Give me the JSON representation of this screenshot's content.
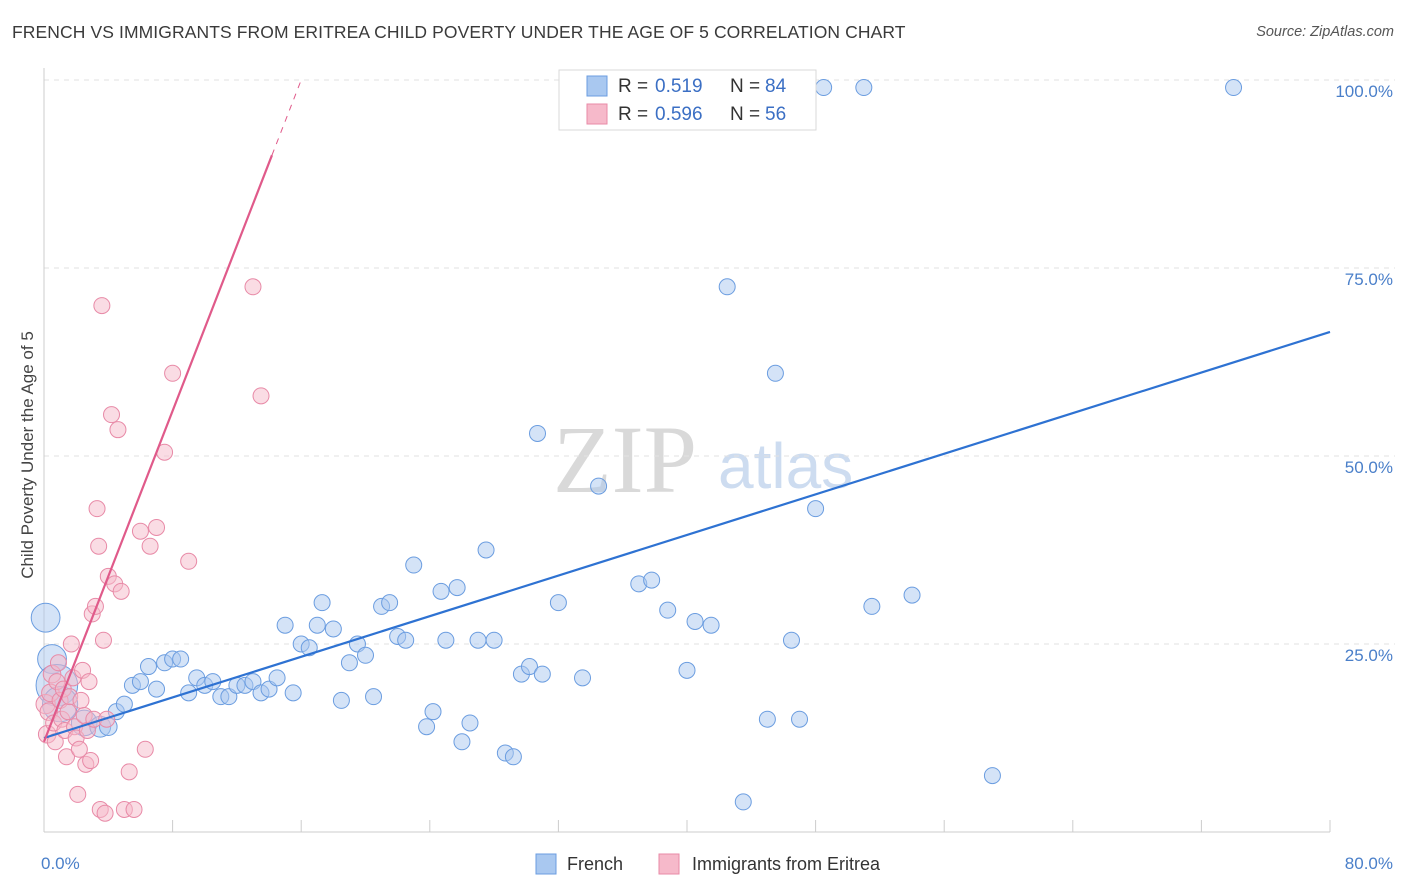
{
  "title": "FRENCH VS IMMIGRANTS FROM ERITREA CHILD POVERTY UNDER THE AGE OF 5 CORRELATION CHART",
  "source": "Source: ZipAtlas.com",
  "watermark": {
    "zip": "ZIP",
    "atlas": "atlas"
  },
  "legend": {
    "rows": [
      {
        "r_label": "R =",
        "r_value": "0.519",
        "n_label": "N =",
        "n_value": "84"
      },
      {
        "r_label": "R =",
        "r_value": "0.596",
        "n_label": "N =",
        "n_value": "56"
      }
    ]
  },
  "bottom_legend": [
    "French",
    "Immigrants from Eritrea"
  ],
  "colors": {
    "french_fill": "#a9c8f0",
    "french_stroke": "#6b9de0",
    "french_line": "#2e72d2",
    "eritrea_fill": "#f6b9ca",
    "eritrea_stroke": "#e88aa7",
    "eritrea_line": "#e05a8a",
    "tick_label": "#4a7fc9",
    "grid": "#e2e2e2"
  },
  "chart_data": {
    "type": "scatter",
    "title": "FRENCH VS IMMIGRANTS FROM ERITREA CHILD POVERTY UNDER THE AGE OF 5 CORRELATION CHART",
    "xlabel": "",
    "ylabel": "Child Poverty Under the Age of 5",
    "xlim": [
      0,
      80
    ],
    "ylim": [
      0,
      100
    ],
    "x_tick_labels": [
      "0.0%",
      "80.0%"
    ],
    "y_tick_values": [
      25,
      50,
      75,
      100
    ],
    "y_tick_labels": [
      "25.0%",
      "50.0%",
      "75.0%",
      "100.0%"
    ],
    "grid": "horizontal dashed",
    "legend_position": "top-center",
    "series": [
      {
        "name": "French",
        "r": 0.519,
        "n": 84,
        "trend": {
          "x": [
            0,
            80
          ],
          "y": [
            12.5,
            66.5
          ]
        },
        "points": [
          [
            0.1,
            28.5,
            1.8
          ],
          [
            0.5,
            23,
            1.8
          ],
          [
            0.8,
            19.5,
            2.6
          ],
          [
            1,
            17,
            2.2
          ],
          [
            2.5,
            14.5,
            1.6
          ],
          [
            3.5,
            14,
            1.3
          ],
          [
            4,
            14,
            1.1
          ],
          [
            4.5,
            16,
            1
          ],
          [
            5,
            17,
            1
          ],
          [
            5.5,
            19.5,
            1
          ],
          [
            6,
            20,
            1
          ],
          [
            6.5,
            22,
            1
          ],
          [
            7,
            19,
            1
          ],
          [
            7.5,
            22.5,
            1
          ],
          [
            8,
            23,
            1
          ],
          [
            8.5,
            23,
            1
          ],
          [
            9,
            18.5,
            1
          ],
          [
            9.5,
            20.5,
            1
          ],
          [
            10,
            19.5,
            1
          ],
          [
            10.5,
            20,
            1
          ],
          [
            11,
            18,
            1
          ],
          [
            11.5,
            18,
            1
          ],
          [
            12,
            19.5,
            1
          ],
          [
            12.5,
            19.5,
            1
          ],
          [
            13,
            20,
            1
          ],
          [
            13.5,
            18.5,
            1
          ],
          [
            14,
            19,
            1
          ],
          [
            14.5,
            20.5,
            1
          ],
          [
            15,
            27.5,
            1
          ],
          [
            15.5,
            18.5,
            1
          ],
          [
            16,
            25,
            1
          ],
          [
            16.5,
            24.5,
            1
          ],
          [
            17,
            27.5,
            1
          ],
          [
            17.3,
            30.5,
            1
          ],
          [
            18,
            27,
            1
          ],
          [
            18.5,
            17.5,
            1
          ],
          [
            19,
            22.5,
            1
          ],
          [
            19.5,
            25,
            1
          ],
          [
            20,
            23.5,
            1
          ],
          [
            20.5,
            18,
            1
          ],
          [
            21,
            30,
            1
          ],
          [
            21.5,
            30.5,
            1
          ],
          [
            22,
            26,
            1
          ],
          [
            22.5,
            25.5,
            1
          ],
          [
            23,
            35.5,
            1
          ],
          [
            23.8,
            14,
            1
          ],
          [
            24.2,
            16,
            1
          ],
          [
            24.7,
            32,
            1
          ],
          [
            25,
            25.5,
            1
          ],
          [
            25.7,
            32.5,
            1
          ],
          [
            26,
            12,
            1
          ],
          [
            26.5,
            14.5,
            1
          ],
          [
            27,
            25.5,
            1
          ],
          [
            27.5,
            37.5,
            1
          ],
          [
            28,
            25.5,
            1
          ],
          [
            28.7,
            10.5,
            1
          ],
          [
            29.2,
            10,
            1
          ],
          [
            29.7,
            21,
            1
          ],
          [
            30.2,
            22,
            1
          ],
          [
            30.7,
            53,
            1
          ],
          [
            31,
            21,
            1
          ],
          [
            32,
            30.5,
            1
          ],
          [
            33.5,
            20.5,
            1
          ],
          [
            34.5,
            46,
            1
          ],
          [
            35.5,
            99,
            1
          ],
          [
            37,
            33,
            1
          ],
          [
            37.8,
            33.5,
            1
          ],
          [
            38.8,
            29.5,
            1
          ],
          [
            40,
            21.5,
            1
          ],
          [
            40.5,
            28,
            1
          ],
          [
            41.5,
            27.5,
            1
          ],
          [
            42.5,
            72.5,
            1
          ],
          [
            43.5,
            4,
            1
          ],
          [
            44,
            99,
            1
          ],
          [
            45,
            15,
            1
          ],
          [
            45.5,
            61,
            1
          ],
          [
            46.5,
            25.5,
            1
          ],
          [
            47,
            15,
            1
          ],
          [
            48,
            43,
            1
          ],
          [
            48.5,
            99,
            1
          ],
          [
            51,
            99,
            1
          ],
          [
            51.5,
            30,
            1
          ],
          [
            54,
            31.5,
            1
          ],
          [
            59,
            7.5,
            1
          ],
          [
            74,
            99,
            1
          ]
        ]
      },
      {
        "name": "Immigrants from Eritrea",
        "r": 0.596,
        "n": 56,
        "trend": {
          "x": [
            0,
            16
          ],
          "y": [
            12,
            100
          ]
        },
        "points": [
          [
            0.1,
            17,
            1.2
          ],
          [
            0.2,
            13,
            1.1
          ],
          [
            0.3,
            16,
            1.1
          ],
          [
            0.4,
            18.5,
            1.1
          ],
          [
            0.5,
            21,
            1.1
          ],
          [
            0.6,
            14.5,
            1
          ],
          [
            0.7,
            12,
            1
          ],
          [
            0.8,
            20,
            1
          ],
          [
            0.9,
            22.5,
            1
          ],
          [
            1,
            17.5,
            1
          ],
          [
            1.1,
            15,
            1
          ],
          [
            1.2,
            19,
            1
          ],
          [
            1.3,
            13.5,
            1
          ],
          [
            1.4,
            10,
            1
          ],
          [
            1.5,
            16,
            1
          ],
          [
            1.6,
            18,
            1
          ],
          [
            1.7,
            25,
            1
          ],
          [
            1.8,
            20.5,
            1
          ],
          [
            1.9,
            14,
            1
          ],
          [
            2,
            12.5,
            1
          ],
          [
            2.1,
            5,
            1
          ],
          [
            2.2,
            11,
            1
          ],
          [
            2.3,
            17.5,
            1
          ],
          [
            2.4,
            21.5,
            1
          ],
          [
            2.5,
            15.5,
            1
          ],
          [
            2.6,
            9,
            1
          ],
          [
            2.7,
            13.5,
            1
          ],
          [
            2.8,
            20,
            1
          ],
          [
            2.9,
            9.5,
            1
          ],
          [
            3,
            29,
            1
          ],
          [
            3.1,
            15,
            1
          ],
          [
            3.2,
            30,
            1
          ],
          [
            3.3,
            43,
            1
          ],
          [
            3.4,
            38,
            1
          ],
          [
            3.5,
            3,
            1
          ],
          [
            3.6,
            70,
            1
          ],
          [
            3.7,
            25.5,
            1
          ],
          [
            3.8,
            2.5,
            1
          ],
          [
            3.9,
            15,
            1
          ],
          [
            4,
            34,
            1
          ],
          [
            4.2,
            55.5,
            1
          ],
          [
            4.4,
            33,
            1
          ],
          [
            4.6,
            53.5,
            1
          ],
          [
            4.8,
            32,
            1
          ],
          [
            5,
            3,
            1
          ],
          [
            5.3,
            8,
            1
          ],
          [
            5.6,
            3,
            1
          ],
          [
            6,
            40,
            1
          ],
          [
            6.3,
            11,
            1
          ],
          [
            6.6,
            38,
            1
          ],
          [
            7,
            40.5,
            1
          ],
          [
            7.5,
            50.5,
            1
          ],
          [
            8,
            61,
            1
          ],
          [
            9,
            36,
            1
          ],
          [
            13,
            72.5,
            1
          ],
          [
            13.5,
            58,
            1
          ]
        ]
      }
    ]
  }
}
